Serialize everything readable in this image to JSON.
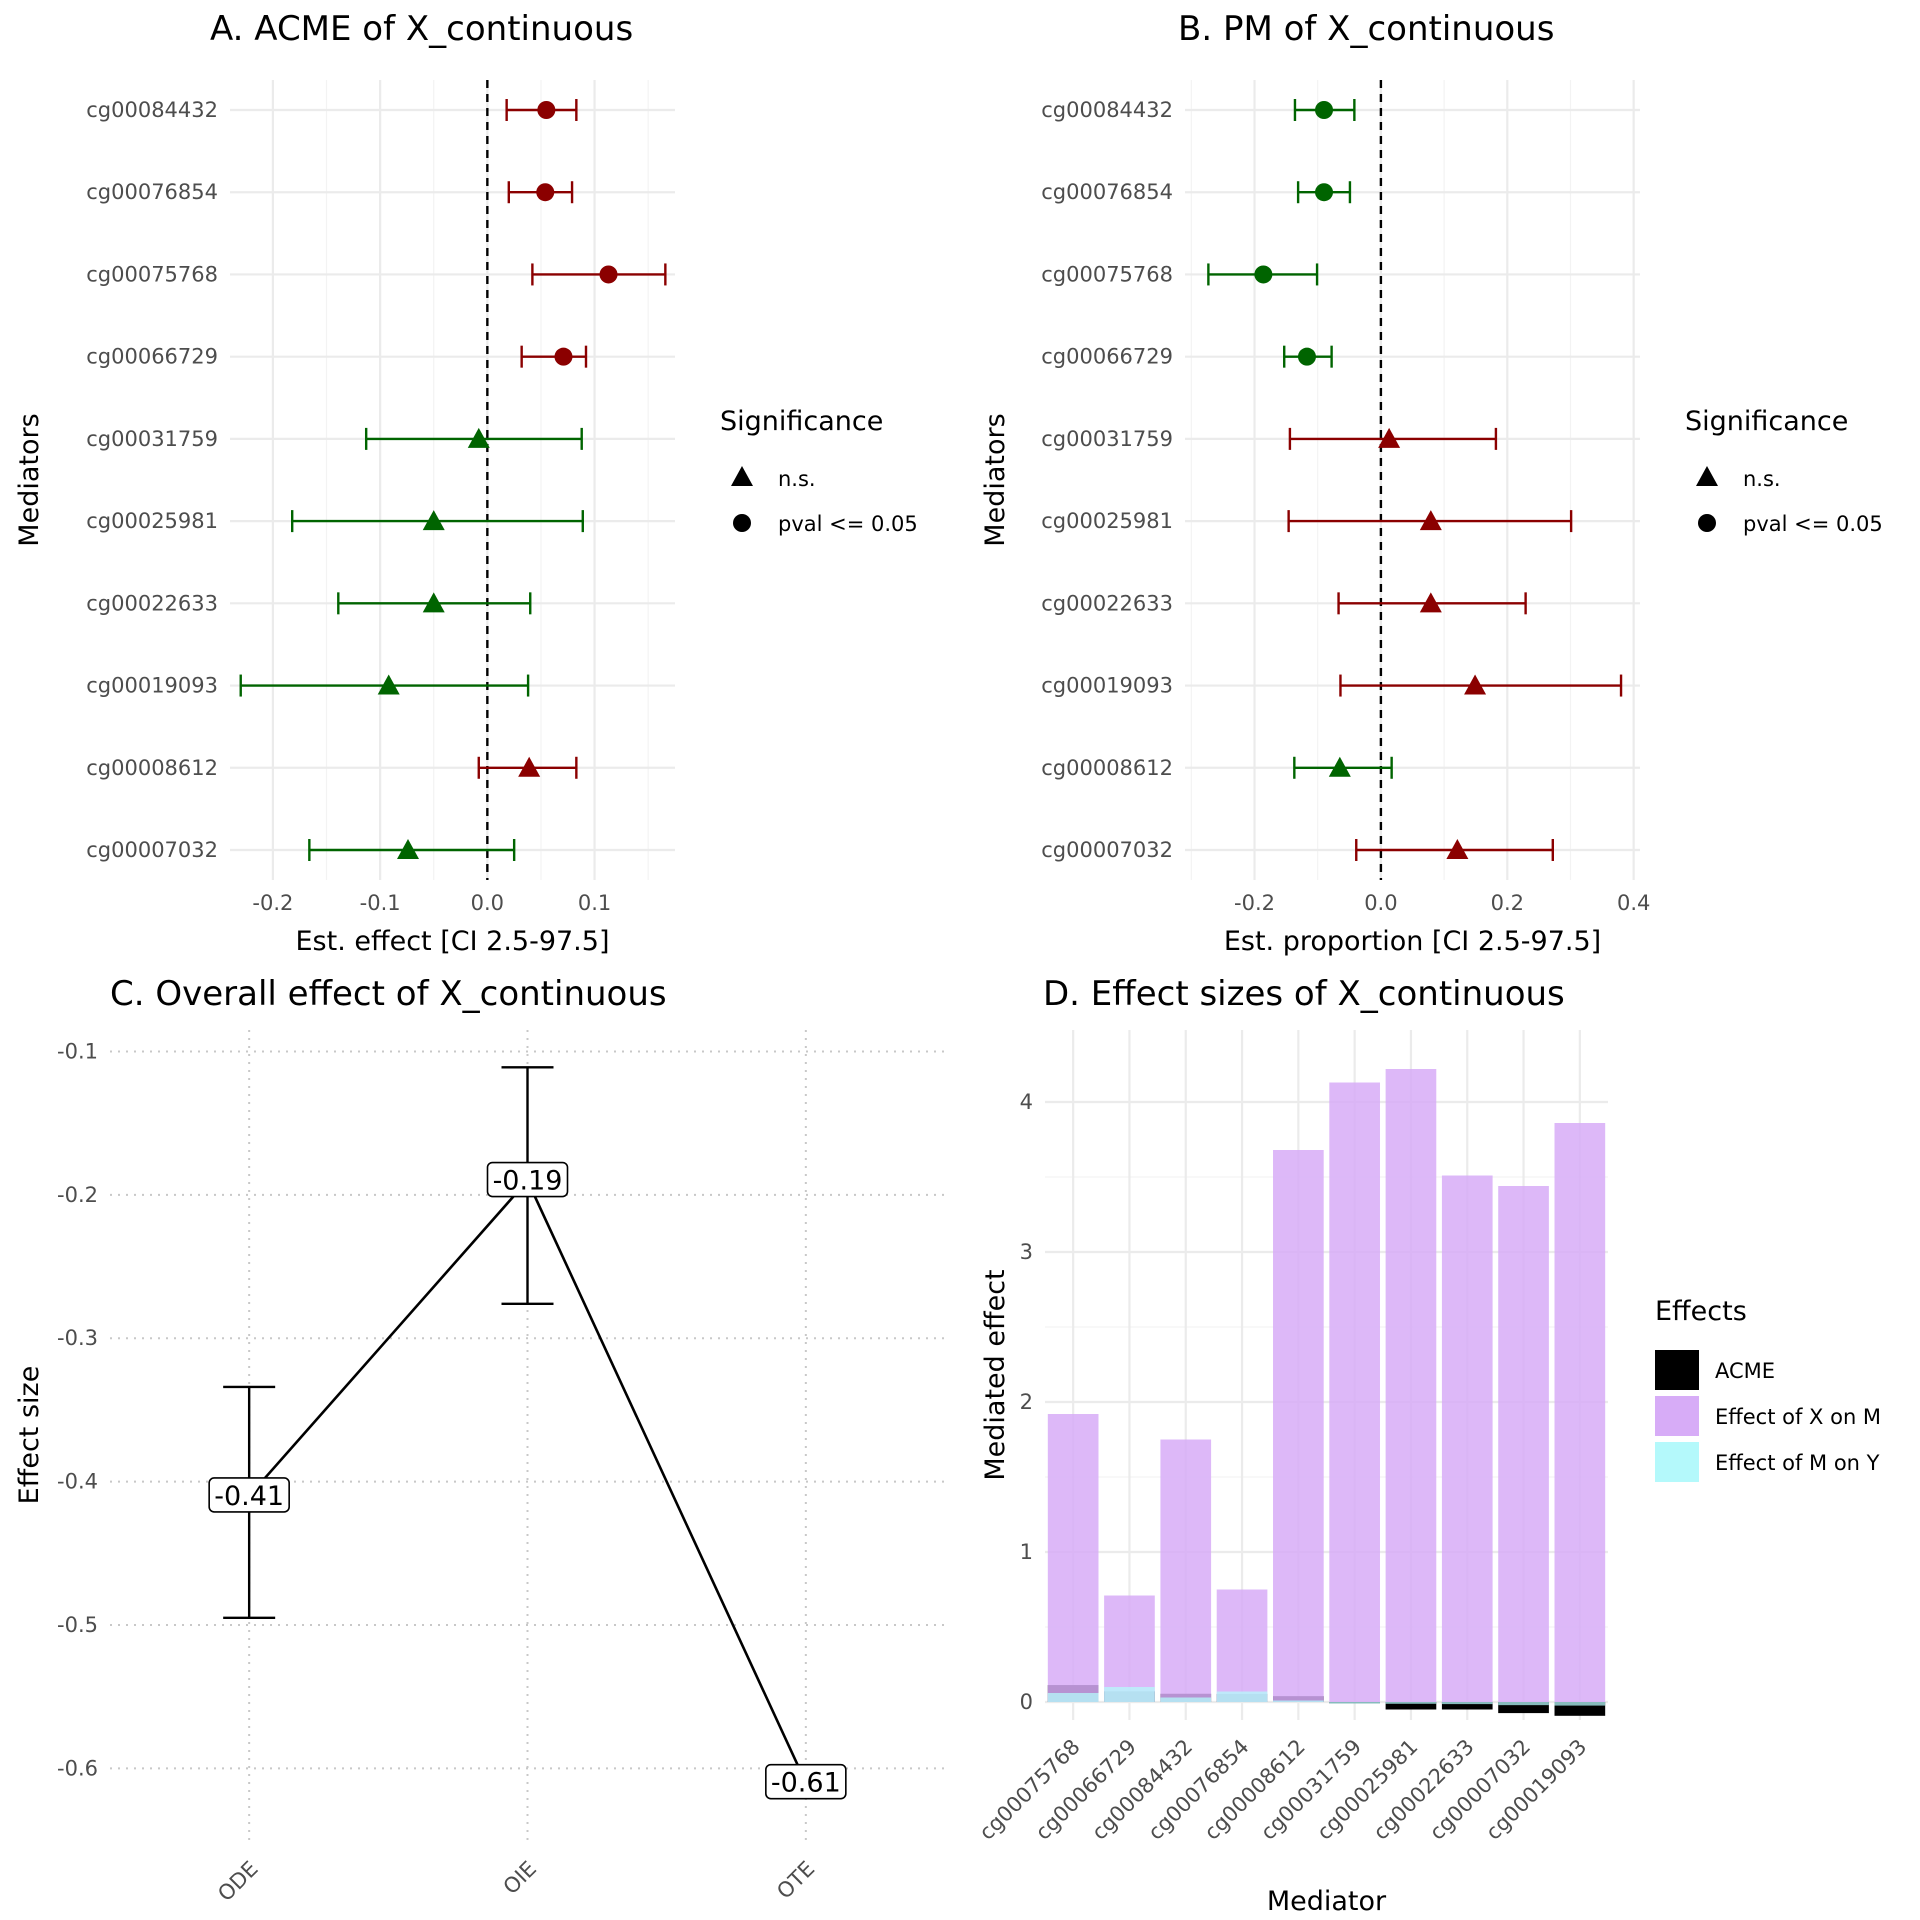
{
  "chart_data": [
    {
      "id": "A",
      "type": "forest",
      "title": "A. ACME of X_continuous",
      "xlabel": "Est. effect [CI 2.5-97.5]",
      "ylabel": "Mediators",
      "xlim": [
        -0.24,
        0.175
      ],
      "xticks": [
        -0.2,
        -0.1,
        0.0,
        0.1
      ],
      "xtick_labels": [
        "-0.2",
        "-0.1",
        "0.0",
        "0.1"
      ],
      "reference_line": 0,
      "colors": {
        "positive": "#8b0000",
        "negative": "#006400"
      },
      "legend": {
        "title": "Significance",
        "entries": [
          {
            "label": "n.s.",
            "shape": "triangle"
          },
          {
            "label": "pval <= 0.05",
            "shape": "circle"
          }
        ],
        "position": "right"
      },
      "rows": [
        {
          "mediator": "cg00084432",
          "est": 0.055,
          "lo": 0.018,
          "hi": 0.083,
          "sig": true
        },
        {
          "mediator": "cg00076854",
          "est": 0.054,
          "lo": 0.02,
          "hi": 0.079,
          "sig": true
        },
        {
          "mediator": "cg00075768",
          "est": 0.113,
          "lo": 0.042,
          "hi": 0.166,
          "sig": true
        },
        {
          "mediator": "cg00066729",
          "est": 0.071,
          "lo": 0.032,
          "hi": 0.092,
          "sig": true
        },
        {
          "mediator": "cg00031759",
          "est": -0.008,
          "lo": -0.113,
          "hi": 0.088,
          "sig": false
        },
        {
          "mediator": "cg00025981",
          "est": -0.05,
          "lo": -0.182,
          "hi": 0.089,
          "sig": false
        },
        {
          "mediator": "cg00022633",
          "est": -0.05,
          "lo": -0.139,
          "hi": 0.04,
          "sig": false
        },
        {
          "mediator": "cg00019093",
          "est": -0.092,
          "lo": -0.23,
          "hi": 0.038,
          "sig": false
        },
        {
          "mediator": "cg00008612",
          "est": 0.039,
          "lo": -0.008,
          "hi": 0.083,
          "sig": false
        },
        {
          "mediator": "cg00007032",
          "est": -0.074,
          "lo": -0.166,
          "hi": 0.025,
          "sig": false
        }
      ]
    },
    {
      "id": "B",
      "type": "forest",
      "title": "B. PM of X_continuous",
      "xlabel": "Est. proportion [CI 2.5-97.5]",
      "ylabel": "Mediators",
      "xlim": [
        -0.31,
        0.41
      ],
      "xticks": [
        -0.2,
        0.0,
        0.2,
        0.4
      ],
      "xtick_labels": [
        "-0.2",
        "0.0",
        "0.2",
        "0.4"
      ],
      "reference_line": 0,
      "colors": {
        "positive": "#8b0000",
        "negative": "#006400"
      },
      "legend": {
        "title": "Significance",
        "entries": [
          {
            "label": "n.s.",
            "shape": "triangle"
          },
          {
            "label": "pval <= 0.05",
            "shape": "circle"
          }
        ],
        "position": "right"
      },
      "rows": [
        {
          "mediator": "cg00084432",
          "est": -0.09,
          "lo": -0.136,
          "hi": -0.042,
          "sig": true
        },
        {
          "mediator": "cg00076854",
          "est": -0.09,
          "lo": -0.131,
          "hi": -0.049,
          "sig": true
        },
        {
          "mediator": "cg00075768",
          "est": -0.186,
          "lo": -0.273,
          "hi": -0.101,
          "sig": true
        },
        {
          "mediator": "cg00066729",
          "est": -0.117,
          "lo": -0.153,
          "hi": -0.078,
          "sig": true
        },
        {
          "mediator": "cg00031759",
          "est": 0.013,
          "lo": -0.144,
          "hi": 0.182,
          "sig": false
        },
        {
          "mediator": "cg00025981",
          "est": 0.079,
          "lo": -0.146,
          "hi": 0.301,
          "sig": false
        },
        {
          "mediator": "cg00022633",
          "est": 0.079,
          "lo": -0.067,
          "hi": 0.229,
          "sig": false
        },
        {
          "mediator": "cg00019093",
          "est": 0.149,
          "lo": -0.064,
          "hi": 0.38,
          "sig": false
        },
        {
          "mediator": "cg00008612",
          "est": -0.065,
          "lo": -0.137,
          "hi": 0.017,
          "sig": false
        },
        {
          "mediator": "cg00007032",
          "est": 0.121,
          "lo": -0.039,
          "hi": 0.272,
          "sig": false
        }
      ]
    },
    {
      "id": "C",
      "type": "line",
      "title": "C. Overall effect of X_continuous",
      "xlabel": "",
      "ylabel": "Effect size",
      "ylim": [
        -0.65,
        -0.085
      ],
      "yticks": [
        -0.1,
        -0.2,
        -0.3,
        -0.4,
        -0.5,
        -0.6
      ],
      "ytick_labels": [
        "-0.1",
        "-0.2",
        "-0.3",
        "-0.4",
        "-0.5",
        "-0.6"
      ],
      "categories": [
        "ODE",
        "OIE",
        "OTE"
      ],
      "points": [
        {
          "cat": "ODE",
          "value": -0.41,
          "lo": -0.495,
          "hi": -0.334,
          "label": "-0.41"
        },
        {
          "cat": "OIE",
          "value": -0.19,
          "lo": -0.276,
          "hi": -0.111,
          "label": "-0.19"
        },
        {
          "cat": "OTE",
          "value": -0.61,
          "label": "-0.61"
        }
      ],
      "grid": "dotted"
    },
    {
      "id": "D",
      "type": "bar",
      "title": "D. Effect sizes of X_continuous",
      "xlabel": "Mediator",
      "ylabel": "Mediated effect",
      "ylim": [
        -0.12,
        4.48
      ],
      "yticks": [
        0,
        1,
        2,
        3,
        4
      ],
      "ytick_labels": [
        "0",
        "1",
        "2",
        "3",
        "4"
      ],
      "categories": [
        "cg00075768",
        "cg00066729",
        "cg00084432",
        "cg00076854",
        "cg00008612",
        "cg00031759",
        "cg00025981",
        "cg00022633",
        "cg00007032",
        "cg00019093"
      ],
      "legend": {
        "title": "Effects",
        "position": "right"
      },
      "series": [
        {
          "name": "ACME",
          "color": "#000000",
          "values": [
            0.113,
            0.071,
            0.055,
            0.054,
            0.039,
            -0.008,
            -0.05,
            -0.05,
            -0.074,
            -0.092
          ]
        },
        {
          "name": "Effect of X on M",
          "color": "#d7acf7",
          "values": [
            1.92,
            0.71,
            1.75,
            0.75,
            3.68,
            4.13,
            4.22,
            3.51,
            3.44,
            3.86
          ]
        },
        {
          "name": "Effect of M on Y",
          "color": "#b4f9fb",
          "values": [
            0.06,
            0.1,
            0.03,
            0.07,
            0.01,
            -0.002,
            -0.012,
            -0.014,
            -0.021,
            -0.024
          ]
        }
      ]
    }
  ]
}
